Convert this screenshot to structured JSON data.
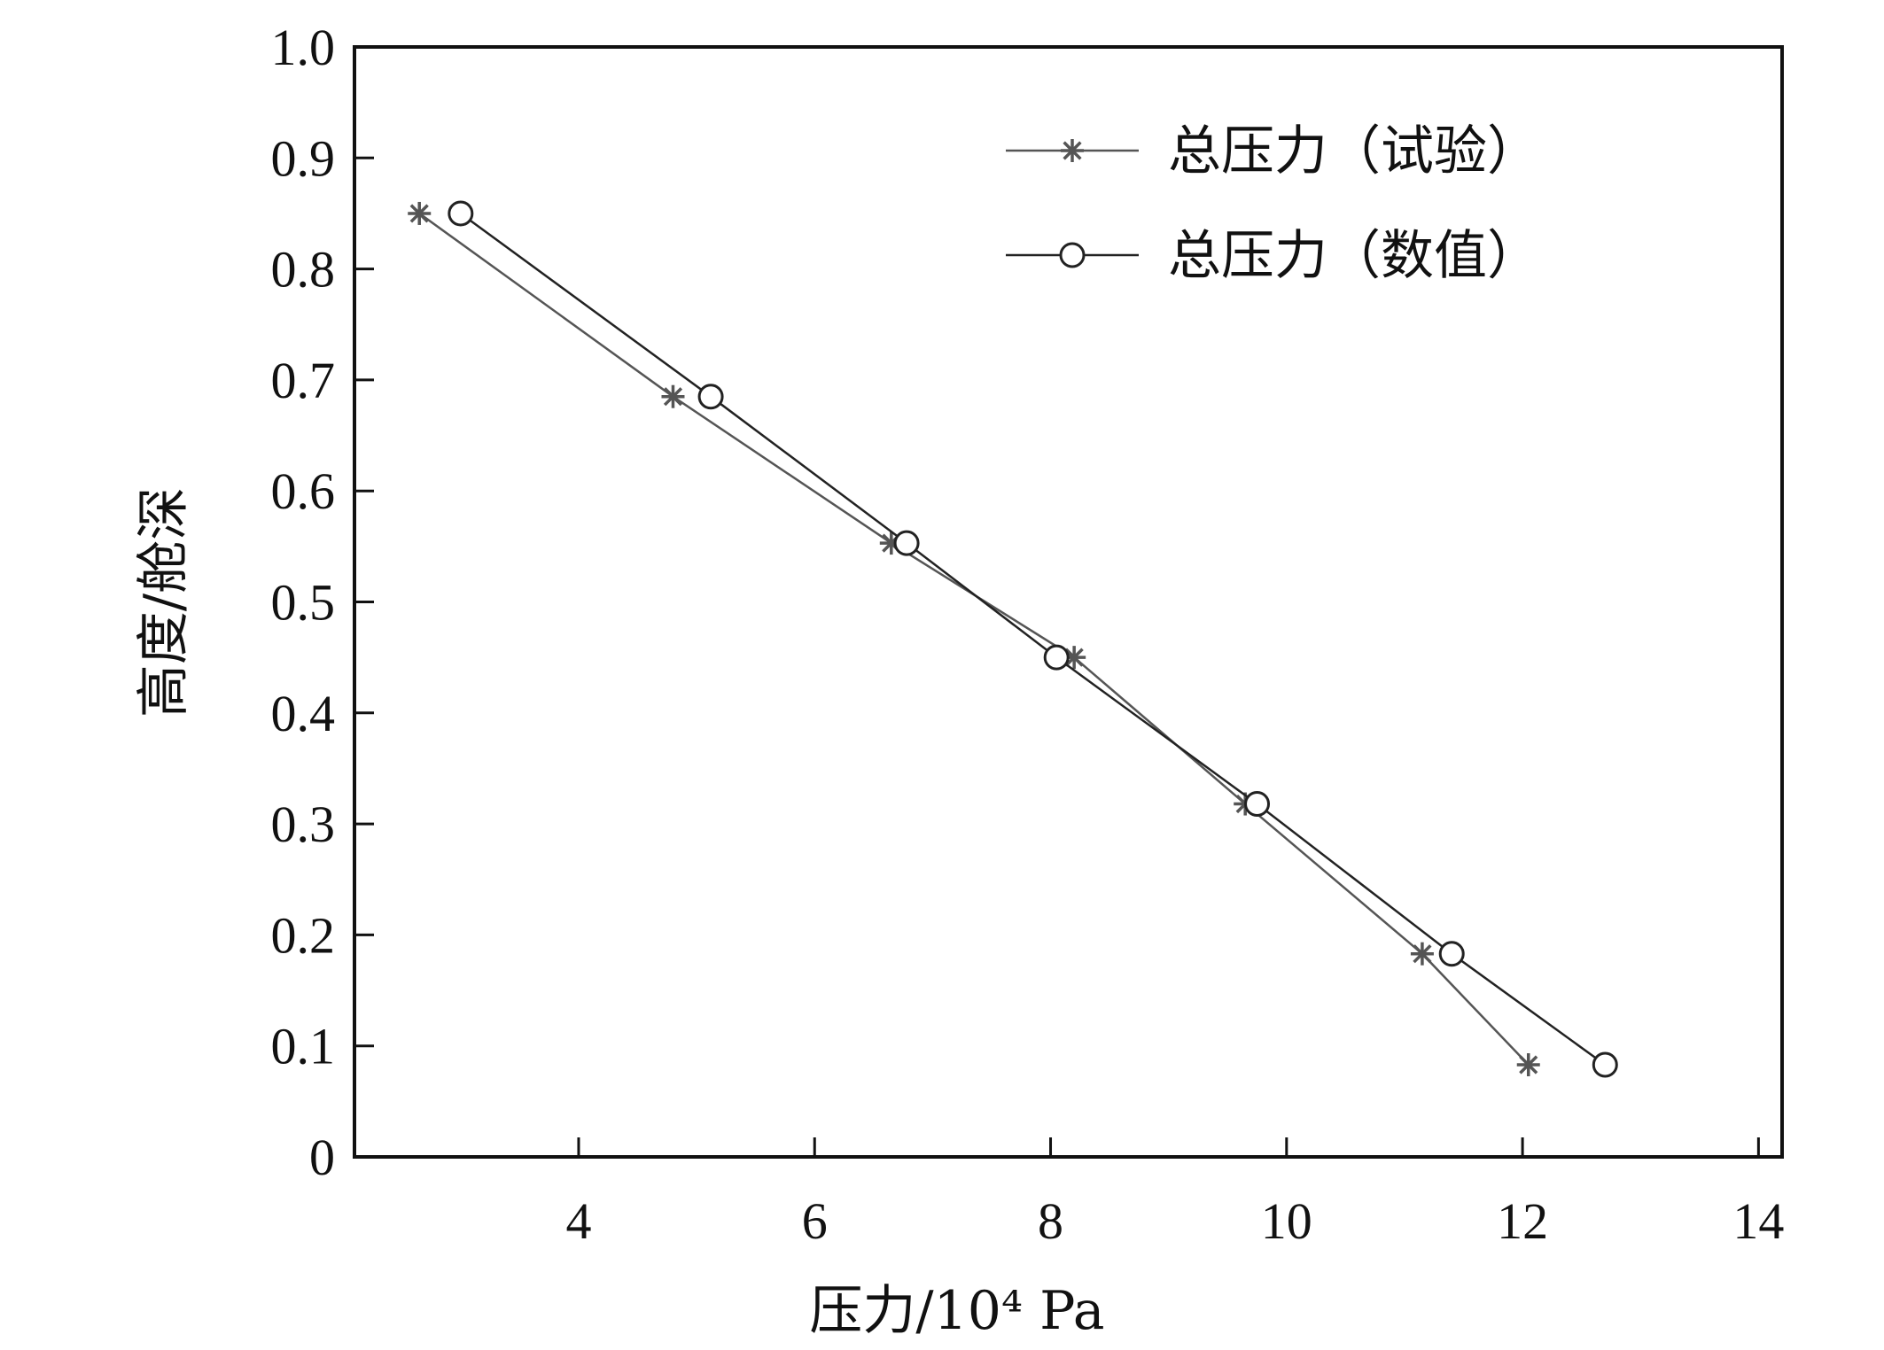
{
  "chart_data": {
    "type": "line",
    "title": "",
    "xlabel": "压力/10⁴ Pa",
    "ylabel": "高度/舱深",
    "xlim": [
      2.1,
      14.2
    ],
    "ylim": [
      0,
      1.0
    ],
    "x_ticks": [
      4,
      6,
      8,
      10,
      12,
      14
    ],
    "x_tick_labels": [
      "4",
      "6",
      "8",
      "10",
      "12",
      "14"
    ],
    "y_ticks": [
      0,
      0.1,
      0.2,
      0.3,
      0.4,
      0.5,
      0.6,
      0.7,
      0.8,
      0.9,
      1.0
    ],
    "y_tick_labels": [
      "0",
      "0.1",
      "0.2",
      "0.3",
      "0.4",
      "0.5",
      "0.6",
      "0.7",
      "0.8",
      "0.9",
      "1.0"
    ],
    "legend_position": "top-right",
    "grid": false,
    "series": [
      {
        "name": "总压力（试验）",
        "marker": "star",
        "color": "#555555",
        "points": [
          {
            "x": 2.65,
            "y": 0.85
          },
          {
            "x": 4.8,
            "y": 0.685
          },
          {
            "x": 6.65,
            "y": 0.553
          },
          {
            "x": 8.2,
            "y": 0.45
          },
          {
            "x": 9.65,
            "y": 0.318
          },
          {
            "x": 11.15,
            "y": 0.183
          },
          {
            "x": 12.05,
            "y": 0.083
          }
        ]
      },
      {
        "name": "总压力（数值）",
        "marker": "circle",
        "color": "#222222",
        "points": [
          {
            "x": 3.0,
            "y": 0.85
          },
          {
            "x": 5.12,
            "y": 0.685
          },
          {
            "x": 6.78,
            "y": 0.553
          },
          {
            "x": 8.05,
            "y": 0.45
          },
          {
            "x": 9.75,
            "y": 0.318
          },
          {
            "x": 11.4,
            "y": 0.183
          },
          {
            "x": 12.7,
            "y": 0.083
          }
        ]
      }
    ]
  }
}
